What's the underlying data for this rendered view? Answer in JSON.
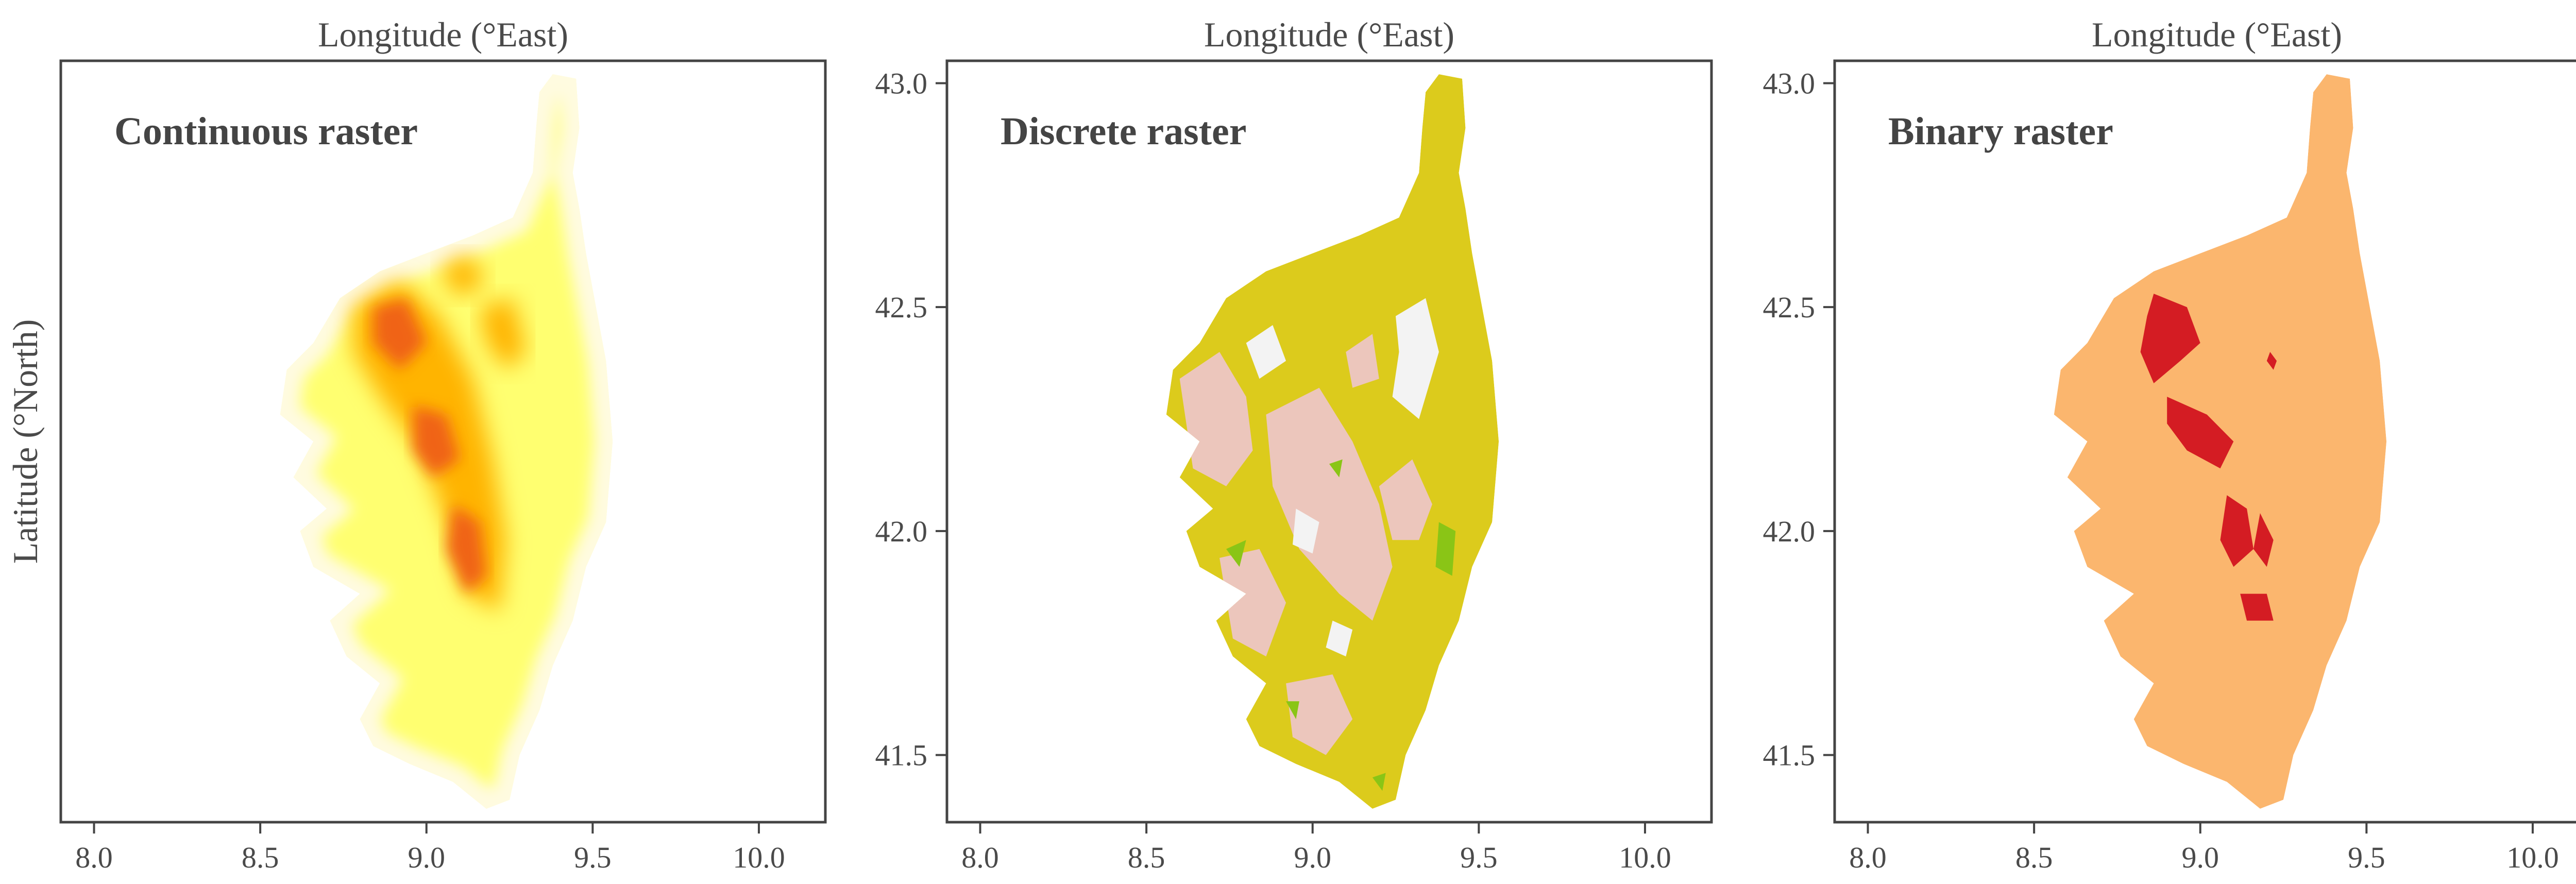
{
  "chart_data": [
    {
      "type": "heatmap",
      "title": "Continuous raster",
      "xlabel": "Longitude (°East)",
      "ylabel": "Latitude (°North)",
      "xlim": [
        7.9,
        10.2
      ],
      "ylim": [
        41.35,
        43.05
      ],
      "xticks": [
        "8.0",
        "8.5",
        "9.0",
        "9.5",
        "10.0"
      ],
      "yticks": [],
      "colormap": [
        "#fffbe0",
        "#ffff66",
        "#ffd200",
        "#ff9a00",
        "#f06010"
      ]
    },
    {
      "type": "heatmap",
      "title": "Discrete raster",
      "xlabel": "Longitude (°East)",
      "ylabel": "",
      "xlim": [
        7.9,
        10.2
      ],
      "ylim": [
        41.35,
        43.05
      ],
      "xticks": [
        "8.0",
        "8.5",
        "9.0",
        "9.5",
        "10.0"
      ],
      "yticks": [
        "41.5",
        "42.0",
        "42.5",
        "43.0"
      ],
      "colors": [
        "#dccb1c",
        "#ecc6bc",
        "#f3f3f3",
        "#8ac516"
      ]
    },
    {
      "type": "heatmap",
      "title": "Binary raster",
      "xlabel": "Longitude (°East)",
      "ylabel": "Latitude (°North)",
      "xlim": [
        7.9,
        10.2
      ],
      "ylim": [
        41.35,
        43.05
      ],
      "xticks": [
        "8.0",
        "8.5",
        "9.0",
        "9.5",
        "10.0"
      ],
      "yticks": [
        "41.5",
        "42.0",
        "42.5",
        "43.0"
      ],
      "colors": [
        "#fbb66e",
        "#d41c23"
      ]
    }
  ],
  "style": {
    "axis_color": "#444444",
    "text_color": "#4a4a4a",
    "title_color": "#444444"
  },
  "island_outline": [
    [
      9.38,
      43.02
    ],
    [
      9.45,
      43.01
    ],
    [
      9.46,
      42.9
    ],
    [
      9.44,
      42.8
    ],
    [
      9.46,
      42.72
    ],
    [
      9.48,
      42.62
    ],
    [
      9.51,
      42.5
    ],
    [
      9.54,
      42.38
    ],
    [
      9.56,
      42.2
    ],
    [
      9.54,
      42.02
    ],
    [
      9.48,
      41.92
    ],
    [
      9.44,
      41.8
    ],
    [
      9.38,
      41.7
    ],
    [
      9.34,
      41.6
    ],
    [
      9.28,
      41.5
    ],
    [
      9.25,
      41.4
    ],
    [
      9.18,
      41.38
    ],
    [
      9.08,
      41.44
    ],
    [
      8.95,
      41.48
    ],
    [
      8.84,
      41.52
    ],
    [
      8.8,
      41.58
    ],
    [
      8.86,
      41.66
    ],
    [
      8.76,
      41.72
    ],
    [
      8.71,
      41.8
    ],
    [
      8.8,
      41.86
    ],
    [
      8.66,
      41.92
    ],
    [
      8.62,
      42.0
    ],
    [
      8.7,
      42.05
    ],
    [
      8.6,
      42.12
    ],
    [
      8.66,
      42.2
    ],
    [
      8.56,
      42.26
    ],
    [
      8.58,
      42.36
    ],
    [
      8.66,
      42.42
    ],
    [
      8.74,
      42.52
    ],
    [
      8.86,
      42.58
    ],
    [
      9.0,
      42.62
    ],
    [
      9.14,
      42.66
    ],
    [
      9.26,
      42.7
    ],
    [
      9.32,
      42.8
    ],
    [
      9.33,
      42.9
    ],
    [
      9.34,
      42.98
    ]
  ],
  "panel_c_hotspots": [
    [
      [
        8.86,
        42.53
      ],
      [
        8.96,
        42.5
      ],
      [
        9.0,
        42.42
      ],
      [
        8.94,
        42.38
      ],
      [
        8.86,
        42.33
      ],
      [
        8.82,
        42.4
      ],
      [
        8.84,
        42.48
      ]
    ],
    [
      [
        8.9,
        42.3
      ],
      [
        9.02,
        42.26
      ],
      [
        9.1,
        42.2
      ],
      [
        9.06,
        42.14
      ],
      [
        8.96,
        42.18
      ],
      [
        8.9,
        42.24
      ]
    ],
    [
      [
        9.08,
        42.08
      ],
      [
        9.14,
        42.05
      ],
      [
        9.16,
        41.96
      ],
      [
        9.1,
        41.92
      ],
      [
        9.06,
        41.98
      ]
    ],
    [
      [
        9.18,
        42.04
      ],
      [
        9.22,
        41.98
      ],
      [
        9.2,
        41.92
      ],
      [
        9.16,
        41.96
      ]
    ],
    [
      [
        9.12,
        41.86
      ],
      [
        9.2,
        41.86
      ],
      [
        9.22,
        41.8
      ],
      [
        9.14,
        41.8
      ]
    ],
    [
      [
        9.21,
        42.4
      ],
      [
        9.23,
        42.38
      ],
      [
        9.22,
        42.36
      ],
      [
        9.2,
        42.38
      ]
    ]
  ],
  "panel_b_light_patches": [
    [
      [
        9.25,
        42.48
      ],
      [
        9.34,
        42.52
      ],
      [
        9.38,
        42.4
      ],
      [
        9.32,
        42.25
      ],
      [
        9.24,
        42.3
      ],
      [
        9.26,
        42.4
      ]
    ],
    [
      [
        8.8,
        42.42
      ],
      [
        8.88,
        42.46
      ],
      [
        8.92,
        42.38
      ],
      [
        8.84,
        42.34
      ]
    ],
    [
      [
        8.95,
        42.05
      ],
      [
        9.02,
        42.02
      ],
      [
        9.0,
        41.95
      ],
      [
        8.94,
        41.97
      ]
    ],
    [
      [
        9.06,
        41.8
      ],
      [
        9.12,
        41.78
      ],
      [
        9.1,
        41.72
      ],
      [
        9.04,
        41.74
      ]
    ]
  ],
  "panel_b_green_patches": [
    [
      [
        9.38,
        42.02
      ],
      [
        9.43,
        42.0
      ],
      [
        9.42,
        41.9
      ],
      [
        9.37,
        41.92
      ]
    ],
    [
      [
        8.74,
        41.96
      ],
      [
        8.8,
        41.98
      ],
      [
        8.78,
        41.92
      ]
    ],
    [
      [
        9.05,
        42.15
      ],
      [
        9.09,
        42.16
      ],
      [
        9.08,
        42.12
      ]
    ],
    [
      [
        8.92,
        41.62
      ],
      [
        8.96,
        41.62
      ],
      [
        8.95,
        41.58
      ]
    ],
    [
      [
        9.18,
        41.45
      ],
      [
        9.22,
        41.46
      ],
      [
        9.21,
        41.42
      ]
    ]
  ],
  "panel_b_pink_regions": [
    [
      [
        8.6,
        42.34
      ],
      [
        8.72,
        42.4
      ],
      [
        8.8,
        42.3
      ],
      [
        8.82,
        42.18
      ],
      [
        8.74,
        42.1
      ],
      [
        8.64,
        42.14
      ],
      [
        8.62,
        42.24
      ]
    ],
    [
      [
        8.86,
        42.26
      ],
      [
        9.02,
        42.32
      ],
      [
        9.12,
        42.2
      ],
      [
        9.2,
        42.06
      ],
      [
        9.24,
        41.92
      ],
      [
        9.18,
        41.8
      ],
      [
        9.08,
        41.86
      ],
      [
        8.96,
        41.96
      ],
      [
        8.88,
        42.1
      ]
    ],
    [
      [
        8.72,
        41.94
      ],
      [
        8.84,
        41.96
      ],
      [
        8.92,
        41.84
      ],
      [
        8.86,
        41.72
      ],
      [
        8.76,
        41.76
      ]
    ],
    [
      [
        9.2,
        42.1
      ],
      [
        9.3,
        42.16
      ],
      [
        9.36,
        42.06
      ],
      [
        9.32,
        41.98
      ],
      [
        9.24,
        41.98
      ]
    ],
    [
      [
        8.92,
        41.66
      ],
      [
        9.06,
        41.68
      ],
      [
        9.12,
        41.58
      ],
      [
        9.04,
        41.5
      ],
      [
        8.94,
        41.54
      ]
    ],
    [
      [
        9.1,
        42.4
      ],
      [
        9.18,
        42.44
      ],
      [
        9.2,
        42.34
      ],
      [
        9.12,
        42.32
      ]
    ]
  ],
  "panel_a_hot_ridges": [
    [
      [
        8.78,
        42.5
      ],
      [
        8.92,
        42.56
      ],
      [
        9.04,
        42.48
      ],
      [
        9.14,
        42.34
      ],
      [
        9.2,
        42.16
      ],
      [
        9.24,
        41.98
      ],
      [
        9.22,
        41.82
      ],
      [
        9.12,
        41.86
      ],
      [
        9.06,
        42.02
      ],
      [
        8.98,
        42.18
      ],
      [
        8.86,
        42.3
      ],
      [
        8.78,
        42.4
      ]
    ],
    [
      [
        9.16,
        42.5
      ],
      [
        9.26,
        42.52
      ],
      [
        9.3,
        42.4
      ],
      [
        9.24,
        42.36
      ],
      [
        9.18,
        42.42
      ]
    ],
    [
      [
        9.04,
        42.58
      ],
      [
        9.12,
        42.62
      ],
      [
        9.18,
        42.56
      ],
      [
        9.1,
        42.52
      ]
    ]
  ],
  "panel_a_core": [
    [
      [
        8.84,
        42.5
      ],
      [
        8.94,
        42.52
      ],
      [
        9.0,
        42.42
      ],
      [
        8.92,
        42.36
      ],
      [
        8.84,
        42.42
      ]
    ],
    [
      [
        8.96,
        42.28
      ],
      [
        9.06,
        42.26
      ],
      [
        9.1,
        42.16
      ],
      [
        9.02,
        42.12
      ],
      [
        8.96,
        42.18
      ]
    ],
    [
      [
        9.08,
        42.06
      ],
      [
        9.16,
        42.02
      ],
      [
        9.18,
        41.9
      ],
      [
        9.12,
        41.86
      ],
      [
        9.06,
        41.96
      ]
    ]
  ]
}
